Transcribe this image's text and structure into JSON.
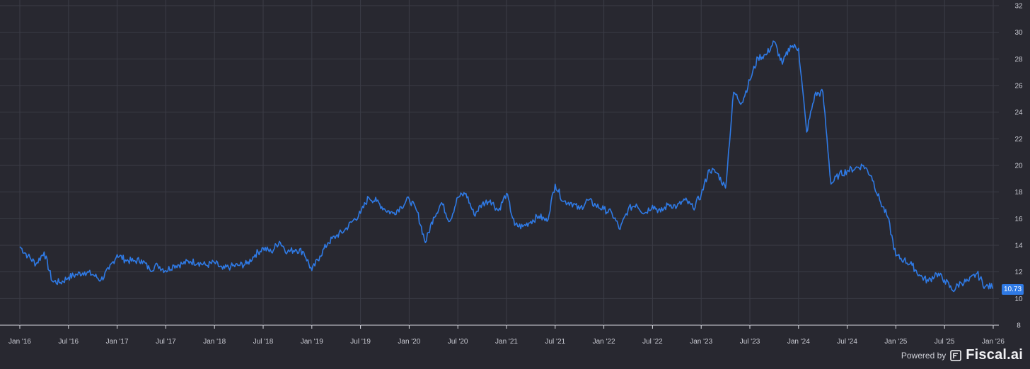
{
  "chart_data": {
    "type": "line",
    "title": "",
    "xlabel": "",
    "ylabel": "",
    "x_tick_labels": [
      "Jan '16",
      "Jul '16",
      "Jan '17",
      "Jul '17",
      "Jan '18",
      "Jul '18",
      "Jan '19",
      "Jul '19",
      "Jan '20",
      "Jul '20",
      "Jan '21",
      "Jul '21",
      "Jan '22",
      "Jul '22",
      "Jan '23",
      "Jul '23",
      "Jan '24",
      "Jul '24",
      "Jan '25",
      "Jul '25",
      "Jan '26"
    ],
    "y_ticks": [
      8,
      10,
      12,
      14,
      16,
      18,
      20,
      22,
      24,
      26,
      28,
      30,
      32
    ],
    "ylim": [
      8,
      32
    ],
    "grid": true,
    "line_color": "#2f7ae5",
    "series": [
      {
        "x": [
          "2016-01",
          "2016-02",
          "2016-03",
          "2016-04",
          "2016-05",
          "2016-06",
          "2016-07",
          "2016-08",
          "2016-09",
          "2016-10",
          "2016-11",
          "2016-12",
          "2017-01",
          "2017-02",
          "2017-03",
          "2017-04",
          "2017-05",
          "2017-06",
          "2017-07",
          "2017-08",
          "2017-09",
          "2017-10",
          "2017-11",
          "2017-12",
          "2018-01",
          "2018-02",
          "2018-03",
          "2018-04",
          "2018-05",
          "2018-06",
          "2018-07",
          "2018-08",
          "2018-09",
          "2018-10",
          "2018-11",
          "2018-12",
          "2019-01",
          "2019-02",
          "2019-03",
          "2019-04",
          "2019-05",
          "2019-06",
          "2019-07",
          "2019-08",
          "2019-09",
          "2019-10",
          "2019-11",
          "2019-12",
          "2020-01",
          "2020-02",
          "2020-03",
          "2020-04",
          "2020-05",
          "2020-06",
          "2020-07",
          "2020-08",
          "2020-09",
          "2020-10",
          "2020-11",
          "2020-12",
          "2021-01",
          "2021-02",
          "2021-03",
          "2021-04",
          "2021-05",
          "2021-06",
          "2021-07",
          "2021-08",
          "2021-09",
          "2021-10",
          "2021-11",
          "2021-12",
          "2022-01",
          "2022-02",
          "2022-03",
          "2022-04",
          "2022-05",
          "2022-06",
          "2022-07",
          "2022-08",
          "2022-09",
          "2022-10",
          "2022-11",
          "2022-12",
          "2023-01",
          "2023-02",
          "2023-03",
          "2023-04",
          "2023-05",
          "2023-06",
          "2023-07",
          "2023-08",
          "2023-09",
          "2023-10",
          "2023-11",
          "2023-12",
          "2024-01",
          "2024-02",
          "2024-03",
          "2024-04",
          "2024-05",
          "2024-06",
          "2024-07",
          "2024-08",
          "2024-09",
          "2024-10",
          "2024-11",
          "2024-12",
          "2025-01",
          "2025-02",
          "2025-03",
          "2025-04",
          "2025-05",
          "2025-06",
          "2025-07",
          "2025-08",
          "2025-09",
          "2025-10",
          "2025-11",
          "2025-12"
        ],
        "values": [
          13.9,
          13.2,
          12.6,
          13.5,
          11.3,
          11.2,
          11.6,
          11.8,
          12.0,
          11.8,
          11.4,
          12.2,
          13.3,
          12.9,
          12.8,
          12.9,
          12.2,
          12.5,
          12.1,
          12.5,
          12.6,
          12.8,
          12.7,
          12.5,
          12.7,
          12.2,
          12.4,
          12.5,
          12.6,
          13.3,
          13.8,
          13.5,
          14.3,
          13.5,
          13.7,
          13.5,
          12.1,
          13.2,
          14.2,
          14.7,
          15.1,
          15.8,
          16.4,
          17.6,
          17.3,
          16.7,
          16.4,
          16.9,
          17.5,
          16.5,
          14.2,
          16.1,
          17.2,
          15.8,
          17.6,
          17.9,
          16.3,
          17.1,
          17.4,
          16.6,
          17.9,
          15.5,
          15.4,
          15.8,
          16.2,
          15.8,
          18.6,
          17.3,
          17.2,
          16.7,
          17.4,
          17.0,
          16.7,
          16.4,
          15.2,
          16.7,
          17.1,
          16.4,
          17.0,
          16.5,
          17.1,
          16.9,
          17.4,
          16.8,
          17.8,
          19.7,
          19.4,
          18.3,
          25.5,
          24.7,
          26.4,
          28.1,
          28.3,
          29.3,
          27.6,
          29.0,
          28.8,
          22.5,
          25.3,
          25.5,
          18.6,
          19.3,
          19.6,
          19.8,
          20.0,
          19.2,
          17.4,
          16.1,
          13.2,
          12.9,
          12.5,
          11.7,
          11.3,
          11.9,
          11.4,
          10.6,
          11.2,
          11.3,
          11.9,
          10.9
        ]
      }
    ],
    "last_value": "10.73"
  },
  "footer": {
    "powered_by": "Powered by",
    "brand": "Fiscal.ai",
    "logo_icon": "fiscal-logo-icon"
  }
}
